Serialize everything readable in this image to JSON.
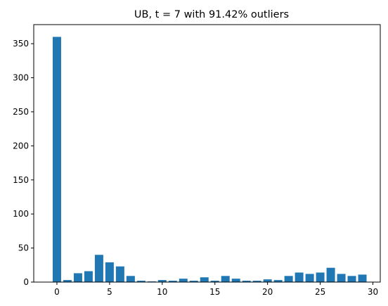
{
  "chart_data": {
    "type": "bar",
    "title": "UB,  t = 7 with 91.42% outliers",
    "xlabel": "",
    "ylabel": "",
    "x": [
      0,
      1,
      2,
      3,
      4,
      5,
      6,
      7,
      8,
      9,
      10,
      11,
      12,
      13,
      14,
      15,
      16,
      17,
      18,
      19,
      20,
      21,
      22,
      23,
      24,
      25,
      26,
      27,
      28,
      29
    ],
    "values": [
      360,
      3,
      13,
      16,
      40,
      29,
      23,
      9,
      2,
      1,
      3,
      2,
      5,
      2,
      7,
      2,
      9,
      5,
      2,
      2,
      4,
      3,
      9,
      14,
      12,
      14,
      21,
      12,
      9,
      11
    ],
    "xlim": [
      -2.2,
      30.7
    ],
    "ylim": [
      0,
      378
    ],
    "xticks": [
      0,
      5,
      10,
      15,
      20,
      25,
      30
    ],
    "yticks": [
      0,
      50,
      100,
      150,
      200,
      250,
      300,
      350
    ],
    "bar_color": "#1f77b4",
    "grid": false,
    "legend": "none"
  }
}
